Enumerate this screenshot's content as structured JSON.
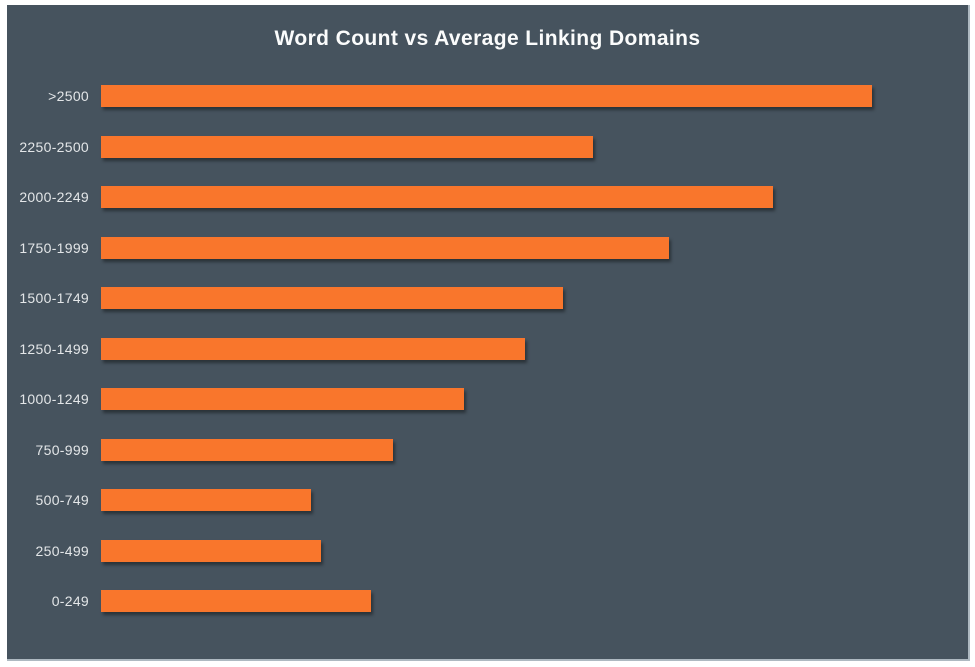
{
  "chart_data": {
    "type": "bar",
    "orientation": "horizontal",
    "title": "Word Count vs Average Linking Domains",
    "xlabel": "",
    "ylabel": "",
    "categories": [
      ">2500",
      "2250-2500",
      "2000-2249",
      "1750-1999",
      "1500-1749",
      "1250-1499",
      "1000-1249",
      "750-999",
      "500-749",
      "250-499",
      "0-249"
    ],
    "values_pct_of_max": [
      100,
      63.8,
      87.2,
      73.7,
      59.9,
      55.0,
      47.1,
      37.9,
      27.2,
      28.5,
      35.0
    ],
    "value_axis_visible": false,
    "grid": false,
    "legend": false,
    "bar_color": "#f9762c",
    "background_color": "#46535e",
    "title_color": "#fbfcfc",
    "label_color": "#e3e6e8"
  }
}
